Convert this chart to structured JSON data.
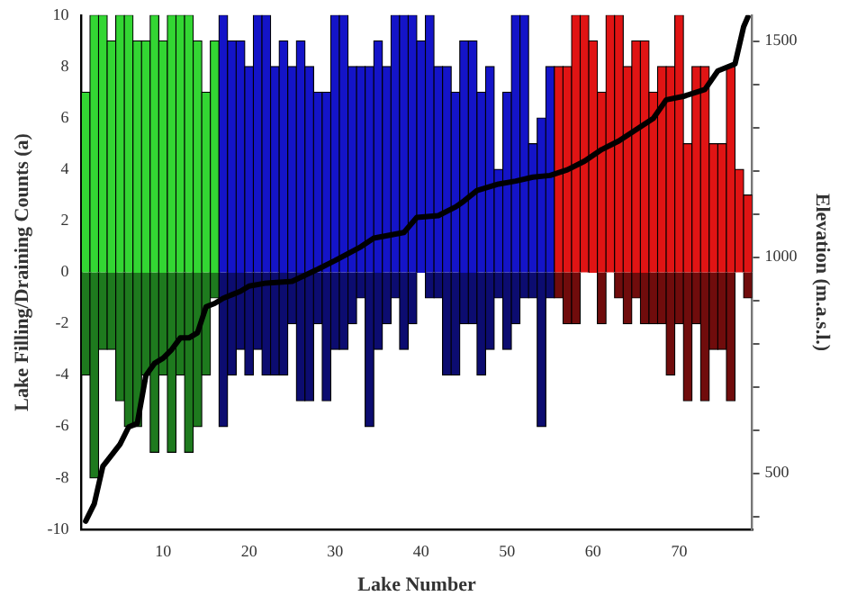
{
  "chart_data": {
    "type": "bar",
    "stacked": true,
    "xlabel": "Lake Number",
    "ylabel": "Lake Filling/Draining Counts (a)",
    "y2label": "Elevation (m.a.s.l.)",
    "x": [
      1,
      2,
      3,
      4,
      5,
      6,
      7,
      8,
      9,
      10,
      11,
      12,
      13,
      14,
      15,
      16,
      17,
      18,
      19,
      20,
      21,
      22,
      23,
      24,
      25,
      26,
      27,
      28,
      29,
      30,
      31,
      32,
      33,
      34,
      35,
      36,
      37,
      38,
      39,
      40,
      41,
      42,
      43,
      44,
      45,
      46,
      47,
      48,
      49,
      50,
      51,
      52,
      53,
      54,
      55,
      56,
      57,
      58,
      59,
      60,
      61,
      62,
      63,
      64,
      65,
      66,
      67,
      68,
      69,
      70,
      71,
      72,
      73,
      74,
      75,
      76,
      77,
      78
    ],
    "xlim": [
      0.5,
      78.5
    ],
    "xticks": [
      10,
      20,
      30,
      40,
      50,
      60,
      70
    ],
    "ylim": [
      -10,
      10
    ],
    "yticks": [
      -10,
      -8,
      -6,
      -4,
      -2,
      0,
      2,
      4,
      6,
      8,
      10
    ],
    "y2lim": [
      370,
      1560
    ],
    "y2ticks": [
      {
        "value": 400,
        "label": null
      },
      500,
      {
        "value": 600,
        "label": null
      },
      {
        "value": 700,
        "label": null
      },
      {
        "value": 800,
        "label": null
      },
      {
        "value": 900,
        "label": null
      },
      1000,
      {
        "value": 1100,
        "label": null
      },
      {
        "value": 1200,
        "label": null
      },
      {
        "value": 1300,
        "label": null
      },
      {
        "value": 1400,
        "label": null
      },
      1500
    ],
    "grid": false,
    "legend": false,
    "series": [
      {
        "values": [
          7,
          10,
          10,
          9,
          10,
          10,
          9,
          9,
          10,
          9,
          10,
          10,
          10,
          9,
          7,
          9,
          10,
          9,
          9,
          8,
          10,
          10,
          8,
          9,
          8,
          9,
          8,
          7,
          7,
          10,
          10,
          8,
          8,
          8,
          9,
          8,
          10,
          10,
          10,
          9,
          10,
          8,
          8,
          7,
          9,
          9,
          7,
          8,
          4,
          7,
          10,
          10,
          5,
          6,
          8,
          8,
          8,
          10,
          10,
          9,
          7,
          10,
          10,
          8,
          9,
          9,
          7,
          8,
          8,
          10,
          5,
          8,
          8,
          5,
          5,
          8,
          4,
          3
        ],
        "colors": [
          "#33d633",
          "#33d633",
          "#33d633",
          "#33d633",
          "#33d633",
          "#33d633",
          "#33d633",
          "#33d633",
          "#33d633",
          "#33d633",
          "#33d633",
          "#33d633",
          "#33d633",
          "#33d633",
          "#33d633",
          "#33d633",
          "#1414c8",
          "#1414c8",
          "#1414c8",
          "#1414c8",
          "#1414c8",
          "#1414c8",
          "#1414c8",
          "#1414c8",
          "#1414c8",
          "#1414c8",
          "#1414c8",
          "#1414c8",
          "#1414c8",
          "#1414c8",
          "#1414c8",
          "#1414c8",
          "#1414c8",
          "#1414c8",
          "#1414c8",
          "#1414c8",
          "#1414c8",
          "#1414c8",
          "#1414c8",
          "#1414c8",
          "#1414c8",
          "#1414c8",
          "#1414c8",
          "#1414c8",
          "#1414c8",
          "#1414c8",
          "#1414c8",
          "#1414c8",
          "#1414c8",
          "#1414c8",
          "#1414c8",
          "#1414c8",
          "#1414c8",
          "#1414c8",
          "#1414c8",
          "#e01414",
          "#e01414",
          "#e01414",
          "#e01414",
          "#e01414",
          "#e01414",
          "#e01414",
          "#e01414",
          "#e01414",
          "#e01414",
          "#e01414",
          "#e01414",
          "#e01414",
          "#e01414",
          "#e01414",
          "#e01414",
          "#e01414",
          "#e01414",
          "#e01414",
          "#e01414",
          "#e01414",
          "#e01414",
          "#e01414"
        ]
      },
      {
        "values": [
          -4,
          -8,
          -3,
          -3,
          -5,
          -6,
          -6,
          -4,
          -7,
          -4,
          -7,
          -4,
          -7,
          -6,
          -4,
          -1,
          -6,
          -4,
          -3,
          -4,
          -3,
          -4,
          -4,
          -4,
          -2,
          -5,
          -5,
          -2,
          -5,
          -3,
          -3,
          -2,
          -1,
          -6,
          -3,
          -2,
          -1,
          -3,
          -2,
          0,
          -1,
          -1,
          -4,
          -4,
          -2,
          -2,
          -4,
          -3,
          -1,
          -3,
          -2,
          -1,
          -1,
          -6,
          -1,
          -1,
          -2,
          -2,
          0,
          0,
          -2,
          0,
          -1,
          -2,
          -1,
          -2,
          -2,
          -2,
          -4,
          -2,
          -5,
          -2,
          -5,
          -3,
          -3,
          -5,
          0,
          -1
        ],
        "colors": [
          "#1e7a1e",
          "#1e7a1e",
          "#1e7a1e",
          "#1e7a1e",
          "#1e7a1e",
          "#1e7a1e",
          "#1e7a1e",
          "#1e7a1e",
          "#1e7a1e",
          "#1e7a1e",
          "#1e7a1e",
          "#1e7a1e",
          "#1e7a1e",
          "#1e7a1e",
          "#1e7a1e",
          "#1e7a1e",
          "#0c0c70",
          "#0c0c70",
          "#0c0c70",
          "#0c0c70",
          "#0c0c70",
          "#0c0c70",
          "#0c0c70",
          "#0c0c70",
          "#0c0c70",
          "#0c0c70",
          "#0c0c70",
          "#0c0c70",
          "#0c0c70",
          "#0c0c70",
          "#0c0c70",
          "#0c0c70",
          "#0c0c70",
          "#0c0c70",
          "#0c0c70",
          "#0c0c70",
          "#0c0c70",
          "#0c0c70",
          "#0c0c70",
          "#0c0c70",
          "#0c0c70",
          "#0c0c70",
          "#0c0c70",
          "#0c0c70",
          "#0c0c70",
          "#0c0c70",
          "#0c0c70",
          "#0c0c70",
          "#0c0c70",
          "#0c0c70",
          "#0c0c70",
          "#0c0c70",
          "#0c0c70",
          "#0c0c70",
          "#0c0c70",
          "#700c0c",
          "#700c0c",
          "#700c0c",
          "#700c0c",
          "#700c0c",
          "#700c0c",
          "#700c0c",
          "#700c0c",
          "#700c0c",
          "#700c0c",
          "#700c0c",
          "#700c0c",
          "#700c0c",
          "#700c0c",
          "#700c0c",
          "#700c0c",
          "#700c0c",
          "#700c0c",
          "#700c0c",
          "#700c0c",
          "#700c0c",
          "#700c0c",
          "#700c0c"
        ]
      },
      {
        "type": "line",
        "axis": "y2",
        "color": "#000000",
        "marker": "none",
        "x": [
          1,
          2,
          3,
          5,
          6,
          7,
          8,
          9,
          10,
          11,
          12,
          13,
          14,
          15,
          16,
          17,
          18,
          19,
          20,
          22,
          25,
          28,
          30,
          33,
          34.5,
          38,
          39.5,
          42,
          44,
          45,
          46.5,
          49,
          51,
          53,
          55,
          57,
          59,
          61,
          63,
          65,
          67,
          68.5,
          70.5,
          73,
          74.5,
          76.5,
          77.5,
          78
        ],
        "values": [
          389,
          429,
          516,
          567,
          607,
          615,
          726,
          754,
          766,
          786,
          813,
          813,
          825,
          885,
          893,
          905,
          913,
          921,
          933,
          940,
          944,
          972,
          992,
          1024,
          1044,
          1057,
          1092,
          1096,
          1116,
          1130,
          1154,
          1169,
          1176,
          1185,
          1189,
          1202,
          1222,
          1249,
          1269,
          1295,
          1321,
          1364,
          1372,
          1388,
          1431,
          1447,
          1533,
          1556
        ]
      }
    ]
  }
}
